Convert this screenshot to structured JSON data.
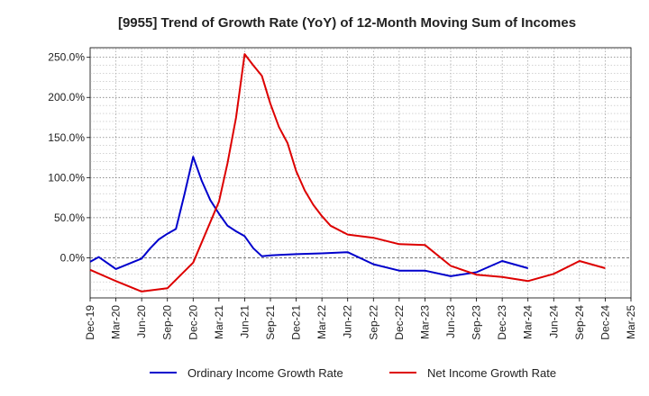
{
  "chart_data": {
    "type": "line",
    "title": "[9955]  Trend of Growth Rate (YoY) of 12-Month Moving Sum of Incomes",
    "xlabel": "",
    "ylabel": "",
    "ylim": [
      -50,
      262
    ],
    "yticks": [
      0,
      50,
      100,
      150,
      200,
      250
    ],
    "ytick_labels": [
      "0.0%",
      "50.0%",
      "100.0%",
      "150.0%",
      "200.0%",
      "250.0%"
    ],
    "x_tick_labels": [
      "Dec-19",
      "Mar-20",
      "Jun-20",
      "Sep-20",
      "Dec-20",
      "Mar-21",
      "Jun-21",
      "Sep-21",
      "Dec-21",
      "Mar-22",
      "Jun-22",
      "Sep-22",
      "Dec-22",
      "Mar-23",
      "Jun-23",
      "Sep-23",
      "Dec-23",
      "Mar-24",
      "Jun-24",
      "Sep-24",
      "Dec-24",
      "Mar-25"
    ],
    "grid": true,
    "legend_position": "bottom",
    "series": [
      {
        "name": "Ordinary Income Growth Rate",
        "color": "#0000cc",
        "x": [
          0,
          1,
          3,
          6,
          7,
          8,
          9,
          10,
          11,
          12,
          13,
          14,
          15,
          16,
          17,
          18,
          19,
          20,
          21,
          22,
          24,
          27,
          30,
          33,
          36,
          39,
          42,
          45,
          48,
          51,
          54,
          57,
          60
        ],
        "values": [
          -5,
          1,
          -14,
          -1,
          12,
          23,
          30,
          36,
          80,
          126,
          96,
          72,
          55,
          40,
          33,
          27,
          12,
          2,
          3,
          3.5,
          4.5,
          5.5,
          7,
          -8,
          -16,
          -16,
          -23,
          -18,
          -4,
          -13,
          null,
          null,
          null
        ]
      },
      {
        "name": "Net Income Growth Rate",
        "color": "#dd0000",
        "x": [
          0,
          3,
          6,
          9,
          12,
          15,
          16,
          17,
          18,
          19,
          20,
          21,
          22,
          23,
          24,
          25,
          26,
          27,
          28,
          30,
          33,
          36,
          39,
          42,
          45,
          48,
          51,
          54,
          57,
          60
        ],
        "values": [
          -15,
          -29,
          -42,
          -38,
          -6,
          70,
          118,
          175,
          254,
          240,
          227,
          192,
          163,
          143,
          108,
          84,
          66,
          52,
          40,
          29,
          25,
          17,
          16,
          -10,
          -21,
          -24,
          -29,
          -20,
          -4,
          -13
        ]
      }
    ]
  }
}
